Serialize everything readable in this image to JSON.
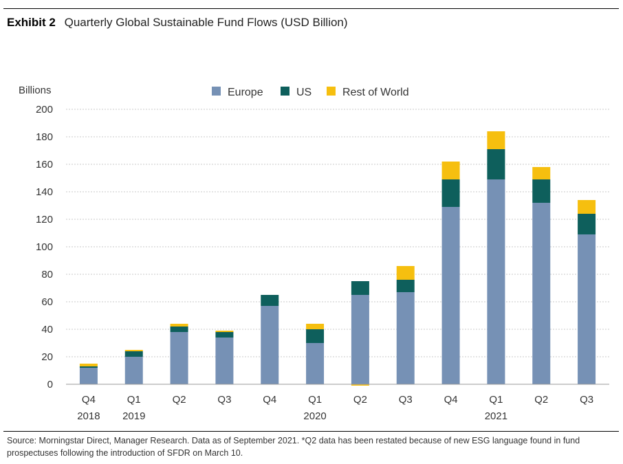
{
  "title_label": "Exhibit 2",
  "title": "Quarterly Global Sustainable Fund Flows (USD Billion)",
  "source_note": "Source: Morningstar Direct, Manager Research. Data as of September 2021. *Q2 data has been restated because of new ESG language found in fund prospectuses following the introduction of SFDR on March 10.",
  "chart_data": {
    "type": "bar",
    "stacked": true,
    "ylabel": "Billions",
    "ylim": [
      0,
      200
    ],
    "yticks": [
      0,
      20,
      40,
      60,
      80,
      100,
      120,
      140,
      160,
      180,
      200
    ],
    "grid": true,
    "legend_position": "top",
    "categories": [
      {
        "quarter": "Q4",
        "year": "2018"
      },
      {
        "quarter": "Q1",
        "year": "2019"
      },
      {
        "quarter": "Q2",
        "year": ""
      },
      {
        "quarter": "Q3",
        "year": ""
      },
      {
        "quarter": "Q4",
        "year": ""
      },
      {
        "quarter": "Q1",
        "year": "2020"
      },
      {
        "quarter": "Q2",
        "year": ""
      },
      {
        "quarter": "Q3",
        "year": ""
      },
      {
        "quarter": "Q4",
        "year": ""
      },
      {
        "quarter": "Q1",
        "year": "2021"
      },
      {
        "quarter": "Q2",
        "year": ""
      },
      {
        "quarter": "Q3",
        "year": ""
      }
    ],
    "series": [
      {
        "name": "Europe",
        "color": "#7691b5",
        "values": [
          12,
          20,
          38,
          34,
          57,
          30,
          65,
          67,
          129,
          149,
          132,
          109
        ]
      },
      {
        "name": "US",
        "color": "#0e5f5c",
        "values": [
          1,
          4,
          4,
          4,
          8,
          10,
          10,
          9,
          20,
          22,
          17,
          15
        ]
      },
      {
        "name": "Rest of World",
        "color": "#f6bf0f",
        "values": [
          2,
          1,
          2,
          1,
          0,
          4,
          -1,
          10,
          13,
          13,
          9,
          10
        ]
      }
    ]
  }
}
